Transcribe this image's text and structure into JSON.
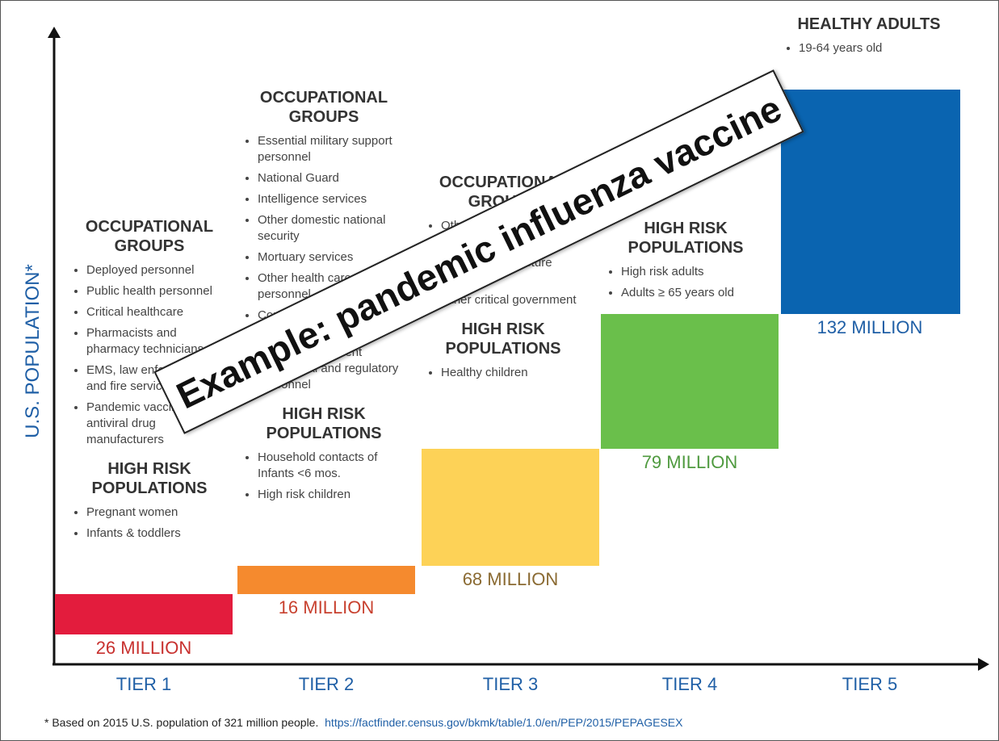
{
  "y_axis_label": "U.S. POPULATION*",
  "watermark": "Example: pandemic influenza vaccine",
  "tiers": [
    {
      "label": "TIER 1",
      "population": "26 MILLION",
      "groups": [
        {
          "title": "OCCUPATIONAL GROUPS",
          "items": [
            "Deployed personnel",
            "Public health personnel",
            "Critical healthcare",
            "Pharmacists and pharmacy technicians",
            "EMS, law enforcement and fire services",
            "Pandemic vaccine and antiviral drug manufacturers"
          ]
        },
        {
          "title": "HIGH RISK POPULATIONS",
          "items": [
            "Pregnant women",
            "Infants & toddlers"
          ]
        }
      ]
    },
    {
      "label": "TIER 2",
      "population": "16 MILLION",
      "groups": [
        {
          "title": "OCCUPATIONAL GROUPS",
          "items": [
            "Essential military support personnel",
            "National Guard",
            "Intelligence services",
            "Other domestic national security",
            "Mortuary services",
            "Other health care personnel",
            "Community support and emergency services",
            "Critical government operational and regulatory personnel"
          ]
        },
        {
          "title": "HIGH RISK POPULATIONS",
          "items": [
            "Household contacts of Infants <6 mos.",
            "High risk children"
          ]
        }
      ]
    },
    {
      "label": "TIER 3",
      "population": "68 MILLION",
      "groups": [
        {
          "title": "OCCUPATIONAL GROUPS",
          "items": [
            "Other healthcare personnel",
            "Critical infrastructure sectors",
            "Other critical government"
          ]
        },
        {
          "title": "HIGH RISK POPULATIONS",
          "items": [
            "Healthy children"
          ]
        }
      ]
    },
    {
      "label": "TIER 4",
      "population": "79 MILLION",
      "groups": [
        {
          "title": "HIGH RISK POPULATIONS",
          "items": [
            "High risk adults",
            "Adults ≥ 65 years old"
          ]
        }
      ]
    },
    {
      "label": "TIER 5",
      "population": "132 MILLION",
      "groups": [
        {
          "title": "HEALTHY ADULTS",
          "items": [
            "19-64 years old"
          ]
        }
      ]
    }
  ],
  "footnote": "* Based on 2015 U.S. population of 321 million people.",
  "link": "https://factfinder.census.gov/bkmk/table/1.0/en/PEP/2015/PEPAGESEX"
}
